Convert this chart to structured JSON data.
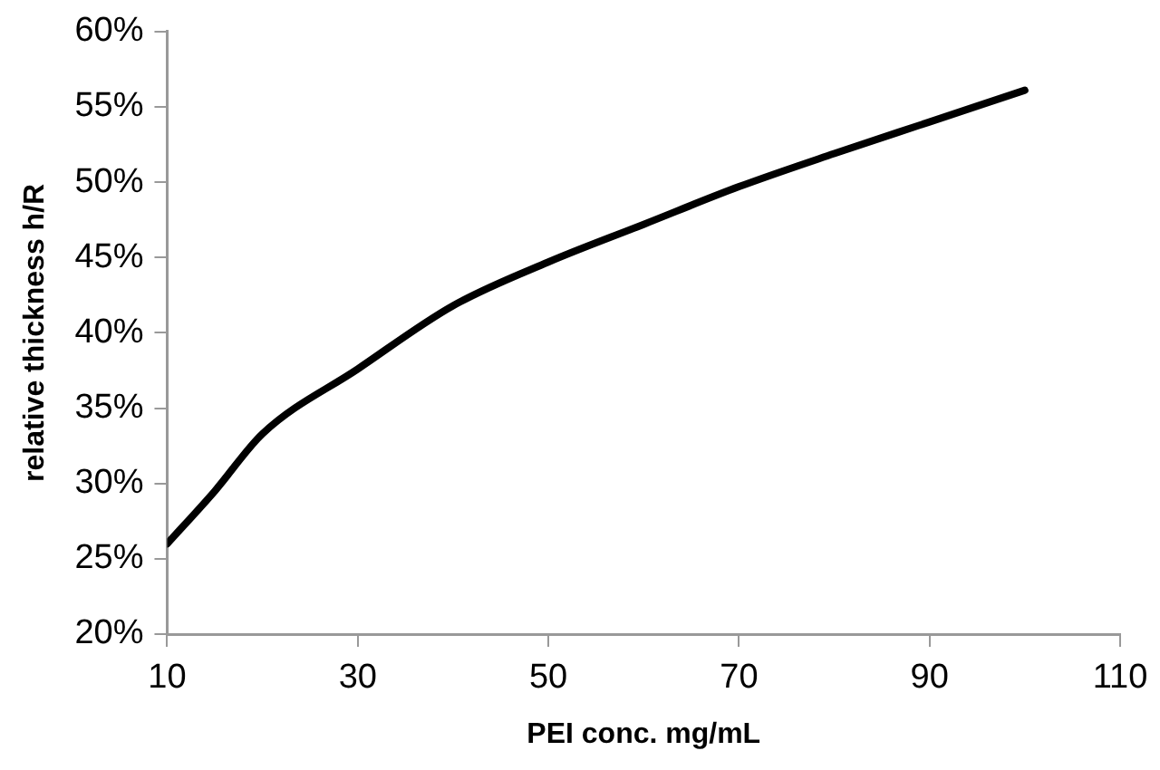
{
  "chart_data": {
    "type": "line",
    "xlabel": "PEI conc. mg/mL",
    "ylabel": "relative thickness h/R",
    "series": [
      {
        "color": "#000000",
        "x": [
          10,
          15,
          20,
          30,
          40,
          50,
          60,
          70,
          80,
          90,
          100
        ],
        "values": [
          26,
          29.5,
          33.3,
          37.6,
          41.8,
          44.7,
          47.2,
          49.7,
          51.9,
          54,
          56.1
        ]
      }
    ],
    "xlim": [
      10,
      110
    ],
    "xticks": [
      10,
      30,
      50,
      70,
      90,
      110
    ],
    "ylim": [
      20,
      60
    ],
    "yticks": [
      {
        "value": 20,
        "label": "20%"
      },
      {
        "value": 25,
        "label": "25%"
      },
      {
        "value": 30,
        "label": "30%"
      },
      {
        "value": 35,
        "label": "35%"
      },
      {
        "value": 40,
        "label": "40%"
      },
      {
        "value": 45,
        "label": "45%"
      },
      {
        "value": 50,
        "label": "50%"
      },
      {
        "value": 55,
        "label": "55%"
      },
      {
        "value": 60,
        "label": "60%"
      }
    ],
    "grid": false,
    "legend": false,
    "marker": "none",
    "line_style": "solid"
  }
}
